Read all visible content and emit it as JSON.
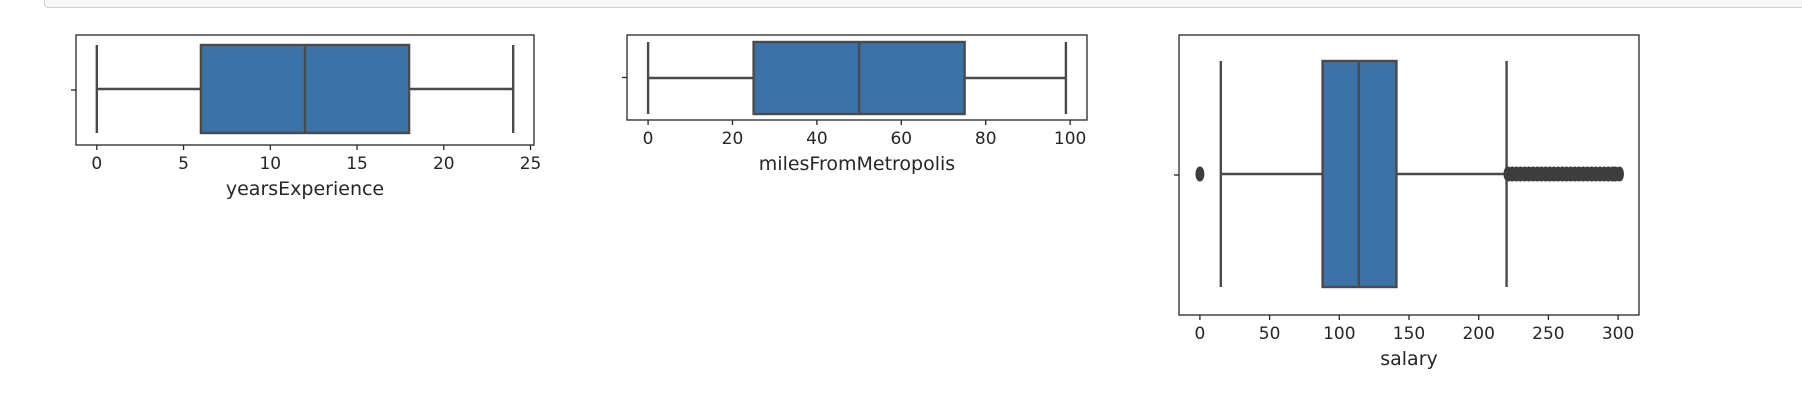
{
  "colors": {
    "box_fill": "#3b73a8",
    "line": "#4a4a4a",
    "frame": "#262626",
    "outlier": "#3d3d3d",
    "cell_border": "#cfcfcf"
  },
  "chart_data": [
    {
      "type": "box",
      "orientation": "horizontal",
      "xlabel": "yearsExperience",
      "xlim": [
        -1.2,
        25.2
      ],
      "ticks": [
        0,
        5,
        10,
        15,
        20,
        25
      ],
      "stats": {
        "whisker_low": 0,
        "q1": 6,
        "median": 12,
        "q3": 18,
        "whisker_high": 24
      },
      "outliers": []
    },
    {
      "type": "box",
      "orientation": "horizontal",
      "xlabel": "milesFromMetropolis",
      "xlim": [
        -5,
        104
      ],
      "ticks": [
        0,
        20,
        40,
        60,
        80,
        100
      ],
      "stats": {
        "whisker_low": 0,
        "q1": 25,
        "median": 50,
        "q3": 75,
        "whisker_high": 99
      },
      "outliers": []
    },
    {
      "type": "box",
      "orientation": "horizontal",
      "xlabel": "salary",
      "xlim": [
        -15,
        315
      ],
      "ticks": [
        0,
        50,
        100,
        150,
        200,
        250,
        300
      ],
      "stats": {
        "whisker_low": 15,
        "q1": 88,
        "median": 114,
        "q3": 141,
        "whisker_high": 220
      },
      "outliers": [
        0,
        221,
        224,
        227,
        230,
        233,
        236,
        239,
        242,
        245,
        248,
        251,
        254,
        257,
        260,
        263,
        266,
        269,
        272,
        275,
        278,
        281,
        284,
        287,
        290,
        293,
        296,
        298,
        301
      ]
    }
  ]
}
